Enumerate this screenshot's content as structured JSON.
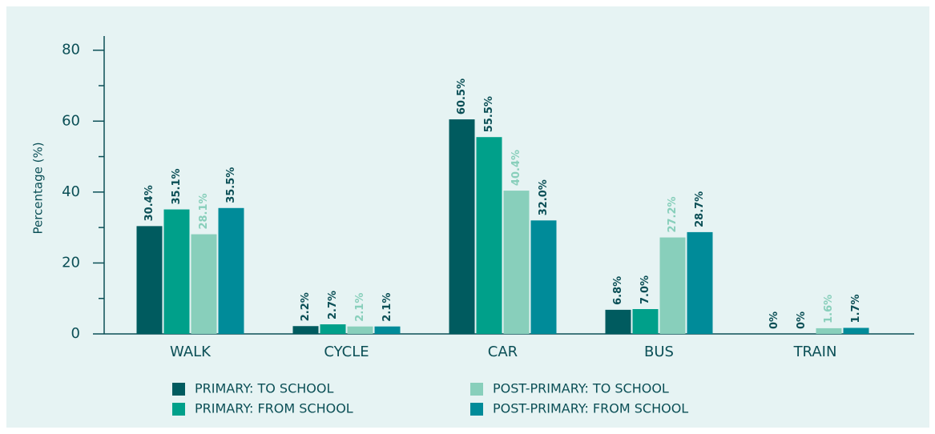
{
  "chart_data": {
    "type": "bar",
    "y_label": "Percentage (%)",
    "categories": [
      "WALK",
      "CYCLE",
      "CAR",
      "BUS",
      "TRAIN"
    ],
    "series": [
      {
        "name": "PRIMARY: TO SCHOOL",
        "color": "#005b5f",
        "label_color": "#0b4f56",
        "values": [
          30.4,
          2.2,
          60.5,
          6.8,
          0
        ],
        "value_labels": [
          "30.4%",
          "2.2%",
          "60.5%",
          "6.8%",
          "0%"
        ]
      },
      {
        "name": "PRIMARY: FROM SCHOOL",
        "color": "#00a08a",
        "label_color": "#0b4f56",
        "values": [
          35.1,
          2.7,
          55.5,
          7.0,
          0
        ],
        "value_labels": [
          "35.1%",
          "2.7%",
          "55.5%",
          "7.0%",
          "0%"
        ]
      },
      {
        "name": "POST-PRIMARY: TO SCHOOL",
        "color": "#88cfbb",
        "label_color": "#88cfbb",
        "values": [
          28.1,
          2.1,
          40.4,
          27.2,
          1.6
        ],
        "value_labels": [
          "28.1%",
          "2.1%",
          "40.4%",
          "27.2%",
          "1.6%"
        ]
      },
      {
        "name": "POST-PRIMARY: FROM SCHOOL",
        "color": "#008b99",
        "label_color": "#0b4f56",
        "values": [
          35.5,
          2.1,
          32.0,
          28.7,
          1.7
        ],
        "value_labels": [
          "35.5%",
          "2.1%",
          "32.0%",
          "28.7%",
          "1.7%"
        ]
      }
    ],
    "ylim": [
      0,
      84
    ],
    "yticks": [
      0,
      20,
      40,
      60,
      80
    ],
    "grid": false
  }
}
